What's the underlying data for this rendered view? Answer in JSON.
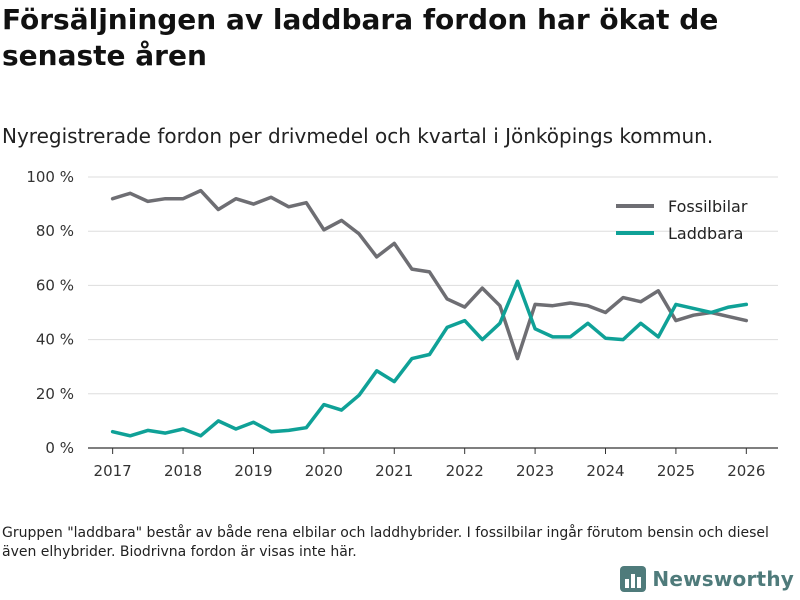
{
  "header": {
    "title": "Försäljningen av laddbara fordon har ökat de senaste åren",
    "subtitle": "Nyregistrerade fordon per drivmedel och kvartal i Jönköpings kommun."
  },
  "footer": {
    "note": "Gruppen \"laddbara\" består av både rena elbilar och laddhybrider. I fossilbilar ingår förutom bensin och diesel även elhybrider. Biodrivna fordon är visas inte här.",
    "brand": "Newsworthy"
  },
  "colors": {
    "fossil": "#6e6e73",
    "laddbara": "#0fa197",
    "grid": "#dddddd",
    "brand": "#4f7b7b"
  },
  "chart_data": {
    "type": "line",
    "title": "Försäljningen av laddbara fordon har ökat de senaste åren",
    "subtitle": "Nyregistrerade fordon per drivmedel och kvartal i Jönköpings kommun.",
    "xlabel": "",
    "ylabel": "",
    "x_ticks": [
      "2017",
      "2018",
      "2019",
      "2020",
      "2021",
      "2022",
      "2023",
      "2024",
      "2025",
      "2026"
    ],
    "x_range": [
      2016.65,
      2026.45
    ],
    "y_ticks": [
      0,
      20,
      40,
      60,
      80,
      100
    ],
    "y_tick_labels": [
      "0 %",
      "20 %",
      "40 %",
      "60 %",
      "80 %",
      "100 %"
    ],
    "ylim": [
      0,
      100
    ],
    "grid": true,
    "legend_position": "top-right",
    "x": [
      2017.0,
      2017.25,
      2017.5,
      2017.75,
      2018.0,
      2018.25,
      2018.5,
      2018.75,
      2019.0,
      2019.25,
      2019.5,
      2019.75,
      2020.0,
      2020.25,
      2020.5,
      2020.75,
      2021.0,
      2021.25,
      2021.5,
      2021.75,
      2022.0,
      2022.25,
      2022.5,
      2022.75,
      2023.0,
      2023.25,
      2023.5,
      2023.75,
      2024.0,
      2024.25,
      2024.5,
      2024.75,
      2025.0,
      2025.25,
      2025.5,
      2025.75,
      2026.0
    ],
    "series": [
      {
        "name": "Fossilbilar",
        "color": "#6e6e73",
        "values": [
          92,
          94,
          91,
          92,
          92,
          95,
          88,
          92,
          90,
          92.5,
          89,
          90.5,
          80.5,
          84,
          79,
          70.5,
          75.5,
          66,
          65,
          55,
          52,
          59,
          52.5,
          33,
          53,
          52.5,
          53.5,
          52.5,
          50,
          55.5,
          54,
          58,
          47,
          49,
          50,
          48.5,
          47
        ]
      },
      {
        "name": "Laddbara",
        "color": "#0fa197",
        "values": [
          6,
          4.5,
          6.5,
          5.5,
          7,
          4.5,
          10,
          7,
          9.5,
          6,
          6.5,
          7.5,
          16,
          14,
          19.5,
          28.5,
          24.5,
          33,
          34.5,
          44.5,
          47,
          40,
          46,
          61.5,
          44,
          41,
          41,
          46,
          40.5,
          40,
          46,
          41,
          53,
          51.5,
          50,
          52,
          53
        ]
      }
    ]
  }
}
